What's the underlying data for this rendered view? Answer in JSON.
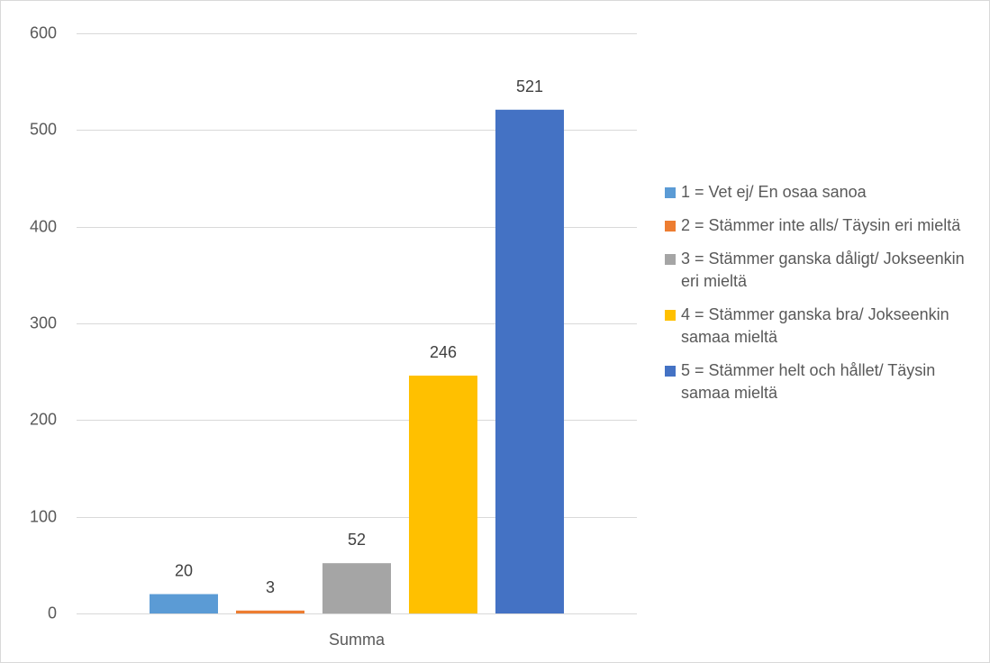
{
  "chart_data": {
    "type": "bar",
    "categories": [
      "Summa"
    ],
    "series": [
      {
        "name": "1 = Vet ej/ En osaa sanoa",
        "values": [
          20
        ],
        "color": "#5b9bd5"
      },
      {
        "name": "2 = Stämmer inte alls/ Täysin eri mieltä",
        "values": [
          3
        ],
        "color": "#ed7d31"
      },
      {
        "name": "3 = Stämmer ganska dåligt/ Jokseenkin eri mieltä",
        "values": [
          52
        ],
        "color": "#a5a5a5"
      },
      {
        "name": "4 = Stämmer ganska bra/ Jokseenkin samaa mieltä",
        "values": [
          246
        ],
        "color": "#ffc000"
      },
      {
        "name": "5 = Stämmer helt och hållet/ Täysin samaa mieltä",
        "values": [
          521
        ],
        "color": "#4472c4"
      }
    ],
    "yticks": [
      0,
      100,
      200,
      300,
      400,
      500,
      600
    ],
    "ylim": [
      0,
      600
    ],
    "grid": true,
    "data_labels": true,
    "legend": "right"
  }
}
